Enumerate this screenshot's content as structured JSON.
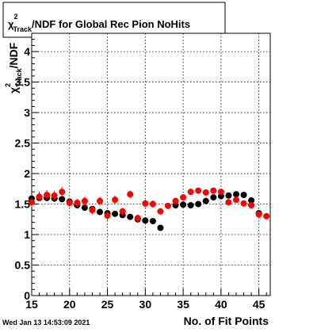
{
  "chart_data": {
    "type": "scatter",
    "title": {
      "symbol": "χ",
      "superscript": "2",
      "subscript": "Track",
      "rest": "/NDF for Global Rec Pion NoHits"
    },
    "ylabel": {
      "symbol": "χ",
      "superscript": "2",
      "subscript": "Track",
      "rest": "/NDF"
    },
    "xlabel": "No. of Fit Points",
    "timestamp": "Wed Jan 13 14:53:09 2021",
    "xlim": [
      15,
      46.5
    ],
    "ylim": [
      0,
      4.3
    ],
    "x_tick_labels": [
      "15",
      "20",
      "25",
      "30",
      "35",
      "40",
      "45"
    ],
    "y_tick_labels": [
      "0",
      "0.5",
      "1",
      "1.5",
      "2",
      "2.5",
      "3",
      "3.5",
      "4"
    ],
    "x_ticks": [
      15,
      20,
      25,
      30,
      35,
      40,
      45
    ],
    "y_ticks": [
      0,
      0.5,
      1,
      1.5,
      2,
      2.5,
      3,
      3.5,
      4
    ],
    "grid": true,
    "series": [
      {
        "color": "#000000",
        "points": [
          {
            "x": 15,
            "y": 1.59,
            "err": 0.04
          },
          {
            "x": 16,
            "y": 1.6,
            "err": 0.04
          },
          {
            "x": 17,
            "y": 1.6,
            "err": 0.04
          },
          {
            "x": 18,
            "y": 1.59,
            "err": 0.04
          },
          {
            "x": 19,
            "y": 1.58,
            "err": 0.04
          },
          {
            "x": 20,
            "y": 1.54,
            "err": 0.04
          },
          {
            "x": 21,
            "y": 1.48,
            "err": 0.04
          },
          {
            "x": 22,
            "y": 1.44,
            "err": 0.04
          },
          {
            "x": 23,
            "y": 1.42,
            "err": 0.04
          },
          {
            "x": 24,
            "y": 1.37,
            "err": 0.04
          },
          {
            "x": 25,
            "y": 1.35,
            "err": 0.04
          },
          {
            "x": 26,
            "y": 1.34,
            "err": 0.03
          },
          {
            "x": 27,
            "y": 1.32,
            "err": 0.03
          },
          {
            "x": 28,
            "y": 1.29,
            "err": 0.03
          },
          {
            "x": 29,
            "y": 1.25,
            "err": 0.03
          },
          {
            "x": 30,
            "y": 1.23,
            "err": 0.03
          },
          {
            "x": 31,
            "y": 1.22,
            "err": 0.03
          },
          {
            "x": 32,
            "y": 1.11,
            "err": 0.03
          },
          {
            "x": 34,
            "y": 1.48,
            "err": 0.03
          },
          {
            "x": 35,
            "y": 1.49,
            "err": 0.03
          },
          {
            "x": 36,
            "y": 1.48,
            "err": 0.03
          },
          {
            "x": 37,
            "y": 1.5,
            "err": 0.03
          },
          {
            "x": 38,
            "y": 1.55,
            "err": 0.03
          },
          {
            "x": 39,
            "y": 1.61,
            "err": 0.03
          },
          {
            "x": 40,
            "y": 1.63,
            "err": 0.03
          },
          {
            "x": 41,
            "y": 1.64,
            "err": 0.03
          },
          {
            "x": 42,
            "y": 1.66,
            "err": 0.03
          },
          {
            "x": 43,
            "y": 1.65,
            "err": 0.03
          },
          {
            "x": 44,
            "y": 1.56,
            "err": 0.03
          },
          {
            "x": 45,
            "y": 1.35,
            "err": 0.03
          }
        ]
      },
      {
        "color": "#ff0000",
        "points": [
          {
            "x": 15,
            "y": 1.53,
            "err": 0.08
          },
          {
            "x": 16,
            "y": 1.62,
            "err": 0.08
          },
          {
            "x": 17,
            "y": 1.65,
            "err": 0.08
          },
          {
            "x": 18,
            "y": 1.64,
            "err": 0.08
          },
          {
            "x": 19,
            "y": 1.7,
            "err": 0.08
          },
          {
            "x": 20,
            "y": 1.52,
            "err": 0.07
          },
          {
            "x": 21,
            "y": 1.52,
            "err": 0.07
          },
          {
            "x": 22,
            "y": 1.55,
            "err": 0.07
          },
          {
            "x": 23,
            "y": 1.4,
            "err": 0.07
          },
          {
            "x": 24,
            "y": 1.55,
            "err": 0.07
          },
          {
            "x": 25,
            "y": 1.31,
            "err": 0.07
          },
          {
            "x": 26,
            "y": 1.57,
            "err": 0.07
          },
          {
            "x": 27,
            "y": 1.38,
            "err": 0.06
          },
          {
            "x": 28,
            "y": 1.66,
            "err": 0.06
          },
          {
            "x": 29,
            "y": 1.27,
            "err": 0.06
          },
          {
            "x": 30,
            "y": 1.51,
            "err": 0.06
          },
          {
            "x": 31,
            "y": 1.5,
            "err": 0.06
          },
          {
            "x": 32,
            "y": 1.38,
            "err": 0.05
          },
          {
            "x": 33,
            "y": 1.47,
            "err": 0.05
          },
          {
            "x": 34,
            "y": 1.55,
            "err": 0.05
          },
          {
            "x": 35,
            "y": 1.61,
            "err": 0.05
          },
          {
            "x": 36,
            "y": 1.7,
            "err": 0.05
          },
          {
            "x": 37,
            "y": 1.72,
            "err": 0.05
          },
          {
            "x": 38,
            "y": 1.69,
            "err": 0.05
          },
          {
            "x": 39,
            "y": 1.72,
            "err": 0.05
          },
          {
            "x": 40,
            "y": 1.7,
            "err": 0.05
          },
          {
            "x": 41,
            "y": 1.53,
            "err": 0.05
          },
          {
            "x": 42,
            "y": 1.57,
            "err": 0.05
          },
          {
            "x": 43,
            "y": 1.51,
            "err": 0.05
          },
          {
            "x": 44,
            "y": 1.48,
            "err": 0.05
          },
          {
            "x": 45,
            "y": 1.33,
            "err": 0.05
          },
          {
            "x": 46,
            "y": 1.3,
            "err": 0.05
          }
        ]
      }
    ]
  }
}
